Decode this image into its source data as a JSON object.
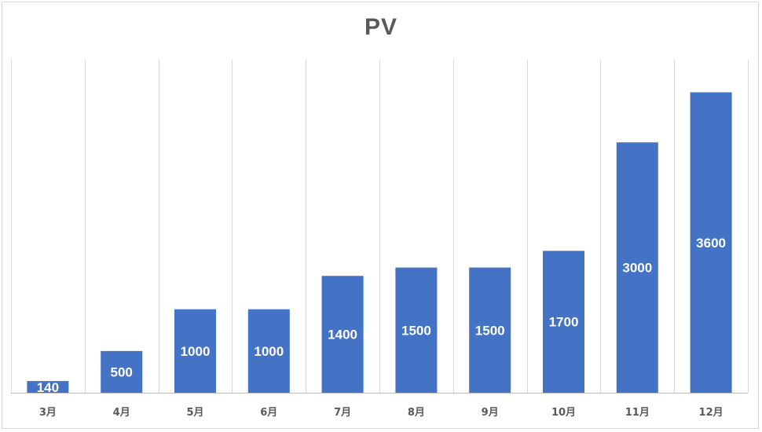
{
  "chart_data": {
    "type": "bar",
    "title": "PV",
    "categories": [
      "3月",
      "4月",
      "5月",
      "6月",
      "7月",
      "8月",
      "9月",
      "10月",
      "11月",
      "12月"
    ],
    "series": [
      {
        "values": [
          140,
          500,
          1000,
          1000,
          1400,
          1500,
          1500,
          1700,
          3000,
          3600
        ],
        "color": "#4472c4"
      }
    ],
    "data_labels": [
      "140",
      "500",
      "1000",
      "1000",
      "1400",
      "1500",
      "1500",
      "1700",
      "3000",
      "3600"
    ],
    "ylim": [
      0,
      4000
    ],
    "xlabel": "",
    "ylabel": "",
    "grid": "vertical category separators",
    "legend": "none",
    "y_axis_visible": false
  }
}
